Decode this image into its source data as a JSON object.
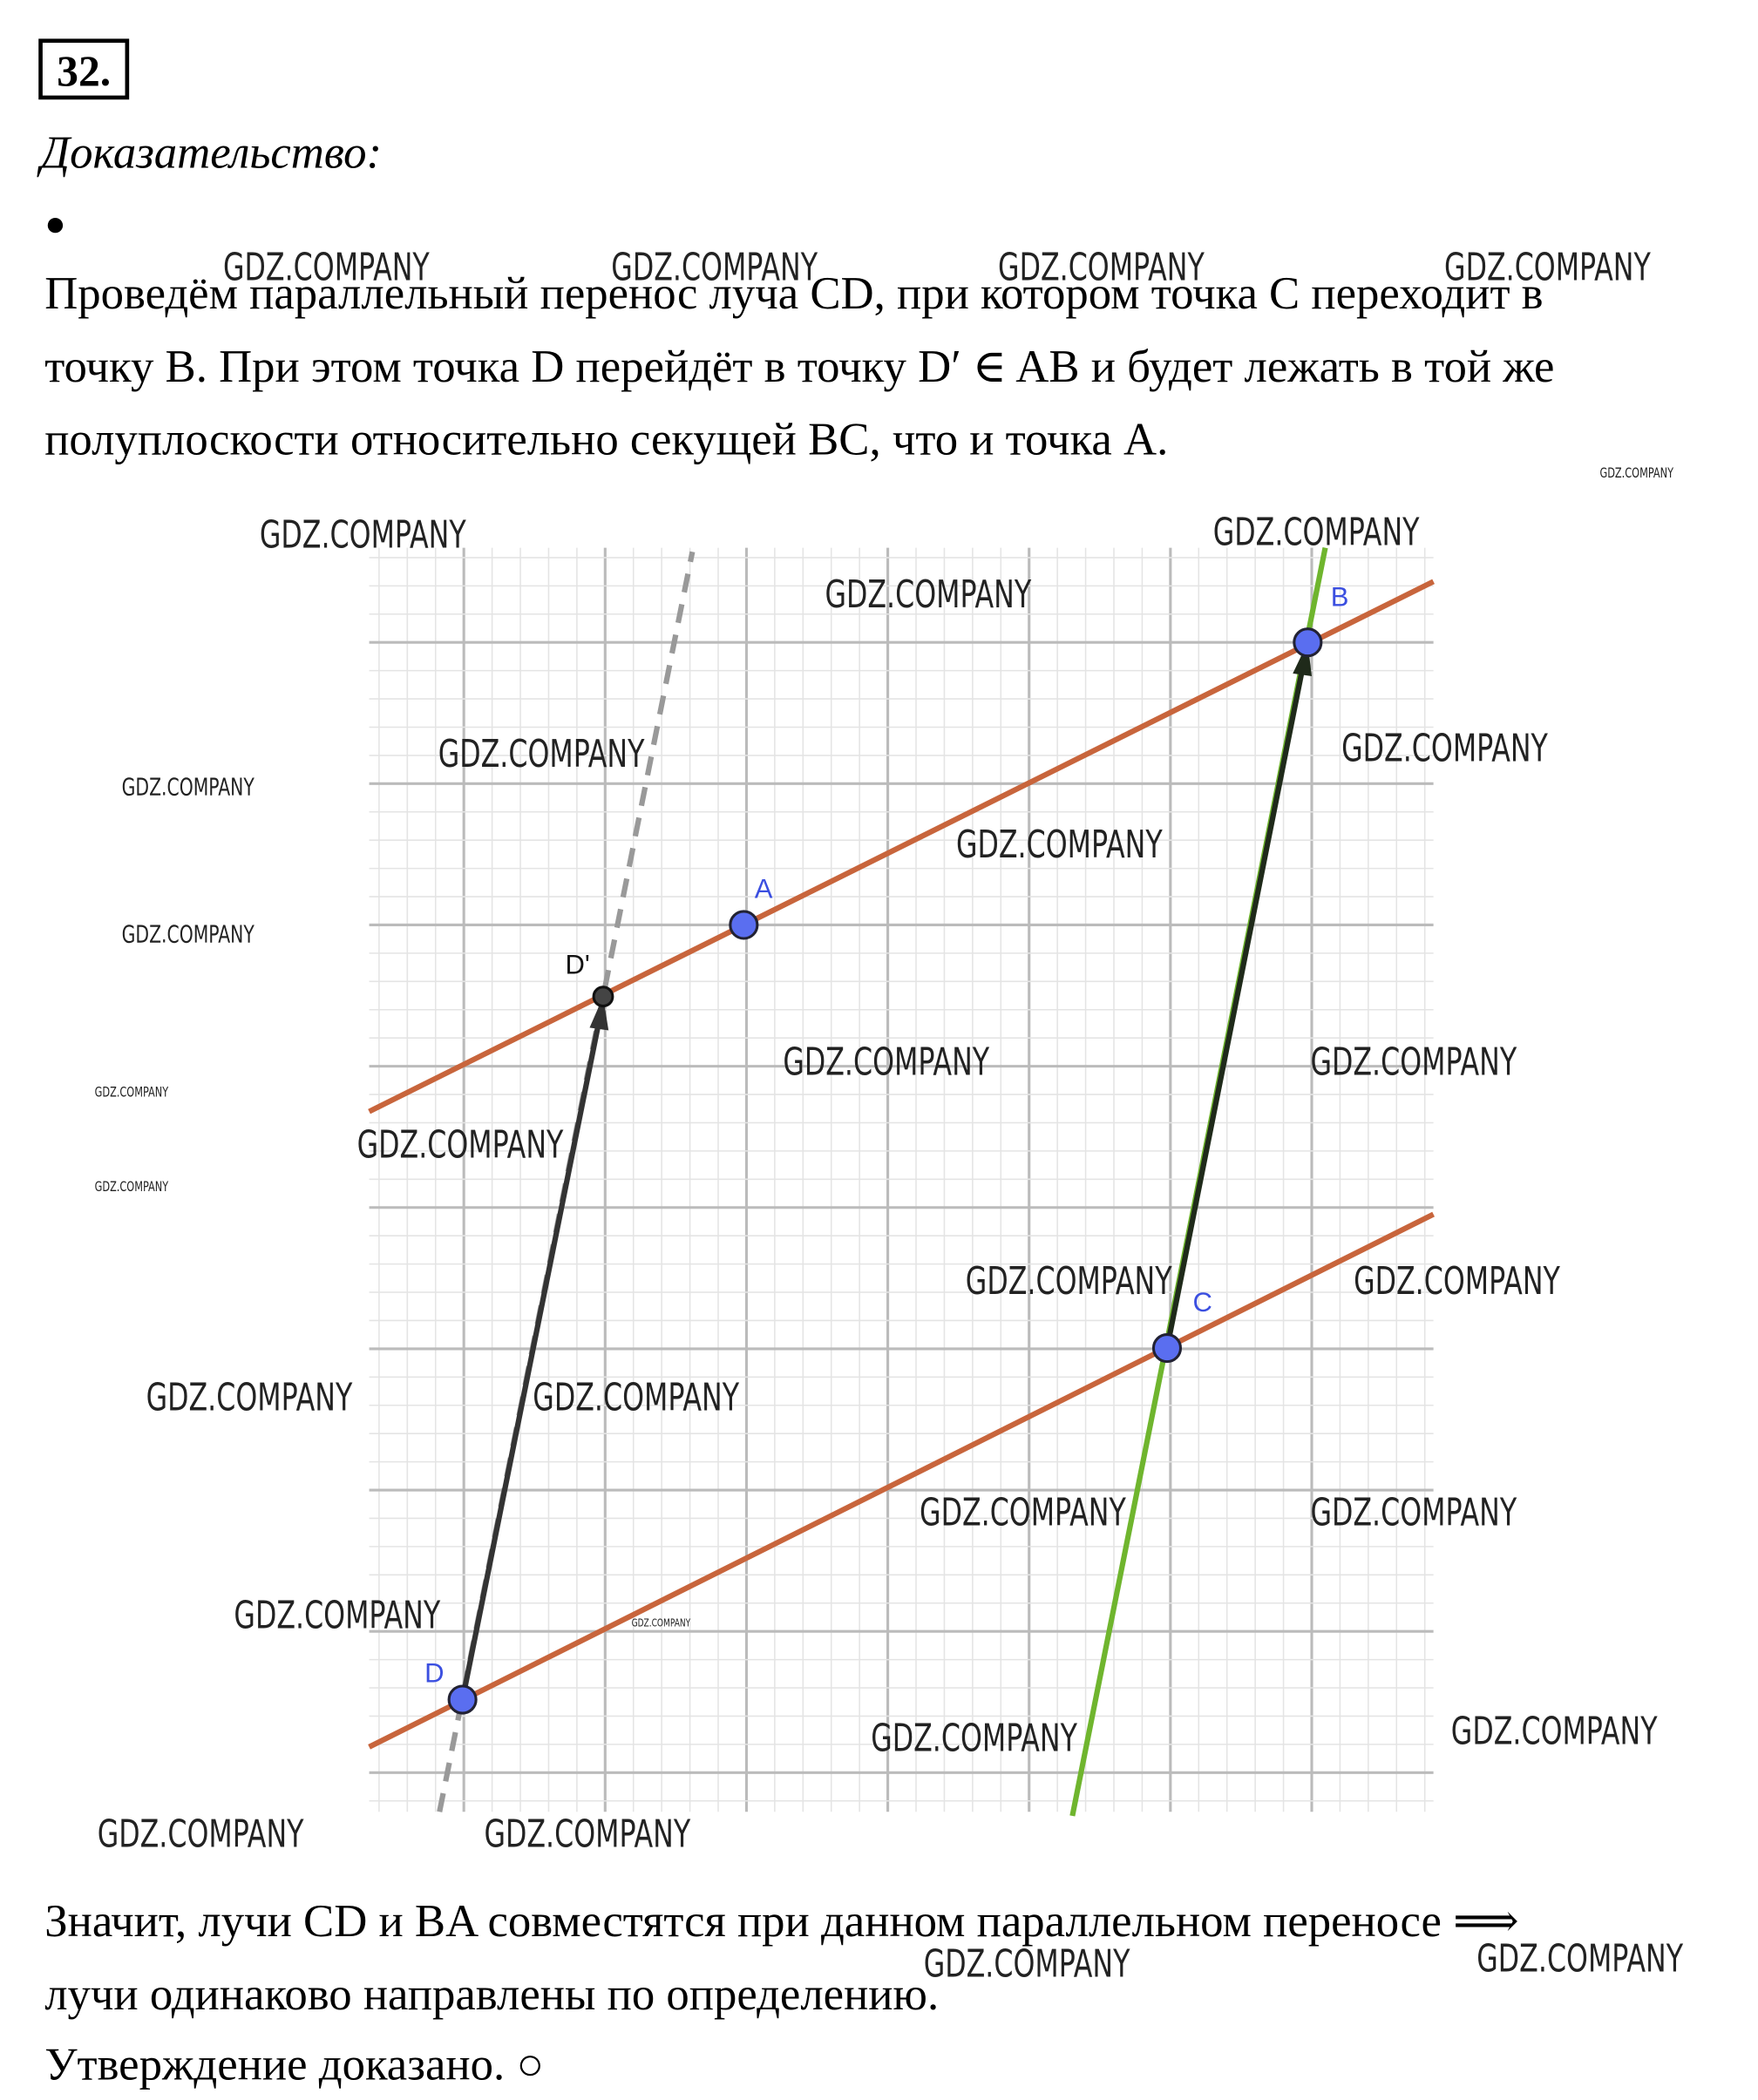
{
  "header": {
    "number": "32.",
    "title": "Доказательство:",
    "bullet": "●"
  },
  "paragraph_1": [
    "Проведём параллельный перенос луча CD, при котором точка C переходит в",
    "точку B. При этом точка D перейдёт в точку D′ ∈ AB и будет лежать в той же",
    "полуплоскости относительно секущей BC, что и точка A."
  ],
  "diagram": {
    "points": [
      "A",
      "B",
      "C",
      "D",
      "D'"
    ]
  },
  "paragraph_2": [
    "Значит, лучи CD и BA совместятся при данном параллельном переносе ⟹",
    "лучи одинаково направлены по определению.",
    "Утверждение доказано. ○"
  ],
  "watermarks": [
    "GDZ.COMPANY",
    "GDZ.COMPANY",
    "GDZ.COMPANY",
    "GDZ.COMPANY",
    "GDZ.COMPANY",
    "GDZ.COMPANY",
    "GDZ.COMPANY",
    "GDZ.COMPANY",
    "GDZ.COMPANY",
    "GDZ.COMPANY",
    "GDZ.COMPANY",
    "GDZ.COMPANY",
    "GDZ.COMPANY",
    "GDZ.COMPANY",
    "GDZ.COMPANY",
    "GDZ.COMPANY",
    "GDZ.COMPANY",
    "GDZ.COMPANY",
    "GDZ.COMPANY",
    "GDZ.COMPANY",
    "GDZ.COMPANY",
    "GDZ.COMPANY",
    "GDZ.COMPANY",
    "GDZ.COMPANY",
    "GDZ.COMPANY",
    "GDZ.COMPANY",
    "GDZ.COMPANY",
    "GDZ.COMPANY",
    "GDZ.COMPANY",
    "GDZ.COMPANY",
    "GDZ.COMPANY",
    "GDZ.COMPANY"
  ]
}
